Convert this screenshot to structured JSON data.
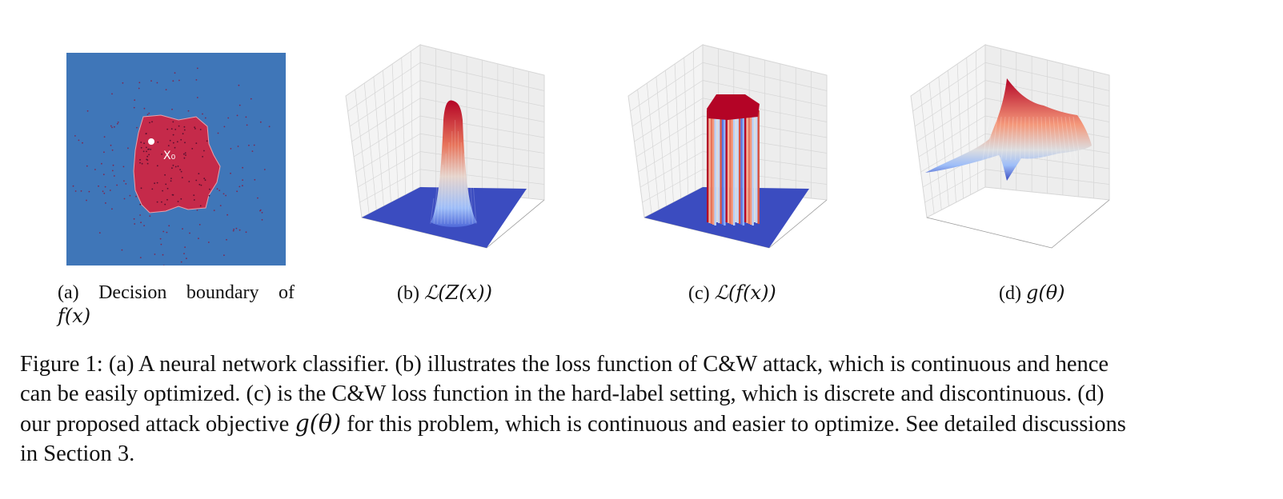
{
  "panels": [
    {
      "id": "a",
      "caption_label": "(a)",
      "caption_text_words": [
        "Decision",
        "boundary",
        "of"
      ],
      "caption_math_line2": "f(x)",
      "point_label": "X₀",
      "colors": {
        "background": "#3f76b8",
        "region": "#c52a4a",
        "point": "#ffffff"
      }
    },
    {
      "id": "b",
      "caption_label": "(b)",
      "caption_math": "ℒ(Z(x))"
    },
    {
      "id": "c",
      "caption_label": "(c)",
      "caption_math": "ℒ(f(x))"
    },
    {
      "id": "d",
      "caption_label": "(d)",
      "caption_math": "g(θ)"
    }
  ],
  "figure_caption": {
    "lines": [
      "Figure 1: (a) A neural network classifier. (b) illustrates the loss function of C&W attack, which is continuous and hence",
      "can be easily optimized. (c) is the C&W loss function in the hard-label setting, which is discrete and discontinuous. (d)",
      "our proposed attack objective ",
      " for this problem, which is continuous and easier to optimize. See detailed discussions",
      "in Section 3."
    ],
    "inline_math": "g(θ)"
  },
  "colors": {
    "floor": "#3b4cc0",
    "hot": "#b40426",
    "cold": "#3b4cc0",
    "grid": "#d8d8d8"
  }
}
